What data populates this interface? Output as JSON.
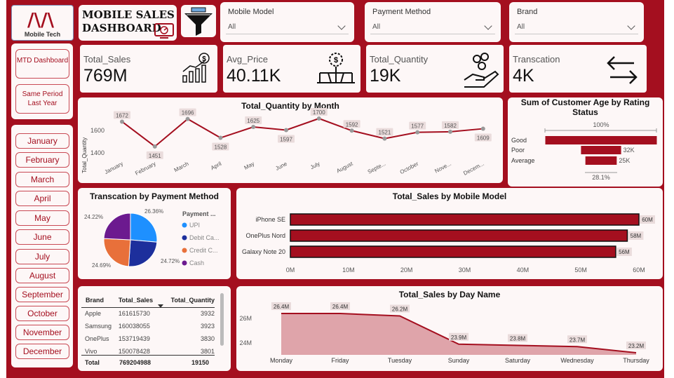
{
  "header": {
    "logo_text": "Mobile Tech",
    "title_line1": "MOBILE SALES",
    "title_line2": "DASHBOARD"
  },
  "slicers": [
    {
      "label": "Mobile Model",
      "value": "All"
    },
    {
      "label": "Payment Method",
      "value": "All"
    },
    {
      "label": "Brand",
      "value": "All"
    }
  ],
  "nav": {
    "mtd": "MTD Dashboard",
    "same_period": "Same Period Last Year"
  },
  "months": [
    "January",
    "February",
    "March",
    "April",
    "May",
    "June",
    "July",
    "August",
    "September",
    "October",
    "November",
    "December"
  ],
  "kpis": [
    {
      "label": "Total_Sales",
      "value": "769M",
      "icon": "bar-growth-icon"
    },
    {
      "label": "Avg_Price",
      "value": "40.11K",
      "icon": "price-network-icon"
    },
    {
      "label": "Total_Quantity",
      "value": "19K",
      "icon": "coins-hand-icon"
    },
    {
      "label": "Transcation",
      "value": "4K",
      "icon": "exchange-arrows-icon"
    }
  ],
  "qty_by_month": {
    "title": "Total_Quantity by Month",
    "ylabel": "Total_Quantity",
    "yticks": [
      "1600",
      "1400"
    ],
    "chart_data": {
      "type": "line",
      "categories": [
        "January",
        "February",
        "March",
        "April",
        "May",
        "June",
        "July",
        "August",
        "September",
        "October",
        "November",
        "December"
      ],
      "tick_labels": [
        "January",
        "February",
        "March",
        "April",
        "May",
        "June",
        "July",
        "August",
        "Septe...",
        "October",
        "Nove...",
        "Decem..."
      ],
      "values": [
        1672,
        1451,
        1696,
        1528,
        1625,
        1597,
        1700,
        1592,
        1521,
        1577,
        1582,
        1609
      ],
      "ylim": [
        1300,
        1800
      ],
      "color": "#a40f1f"
    }
  },
  "age_by_rating": {
    "title": "Sum of Customer Age by Rating Status",
    "top_label": "100%",
    "bottom_label": "28.1%",
    "chart_data": {
      "type": "bar",
      "categories": [
        "Good",
        "Poor",
        "Average"
      ],
      "values": [
        89,
        32,
        25
      ],
      "value_labels": [
        "",
        "32K",
        "25K"
      ]
    }
  },
  "payment_pie": {
    "title": "Transcation by Payment Method",
    "legend_title": "Payment ...",
    "chart_data": {
      "type": "pie",
      "categories": [
        "UPI",
        "Debit Ca...",
        "Credit C...",
        "Cash"
      ],
      "values": [
        26.36,
        24.72,
        24.69,
        24.22
      ],
      "labels": [
        "26.36%",
        "24.72%",
        "24.69%",
        "24.22%"
      ],
      "colors": [
        "#1e90ff",
        "#1d2f9c",
        "#e8703a",
        "#6c1a8f"
      ]
    }
  },
  "sales_by_model": {
    "title": "Total_Sales by Mobile Model",
    "chart_data": {
      "type": "bar",
      "categories": [
        "iPhone SE",
        "OnePlus Nord",
        "Galaxy Note 20"
      ],
      "values": [
        60,
        58,
        56
      ],
      "value_labels": [
        "60M",
        "58M",
        "56M"
      ],
      "xticks": [
        "0M",
        "10M",
        "20M",
        "30M",
        "40M",
        "50M",
        "60M"
      ],
      "xlim": [
        0,
        60
      ]
    }
  },
  "brand_table": {
    "headers": [
      "Brand",
      "Total_Sales",
      "Total_Quantity"
    ],
    "rows": [
      [
        "Apple",
        "161615730",
        "3932"
      ],
      [
        "Samsung",
        "160038055",
        "3923"
      ],
      [
        "OnePlus",
        "153719439",
        "3830"
      ],
      [
        "Vivo",
        "150078428",
        "3801"
      ]
    ],
    "total": [
      "Total",
      "769204988",
      "19150"
    ]
  },
  "sales_by_day": {
    "title": "Total_Sales by Day Name",
    "yticks": [
      "26M",
      "24M"
    ],
    "chart_data": {
      "type": "area",
      "categories": [
        "Monday",
        "Friday",
        "Tuesday",
        "Sunday",
        "Saturday",
        "Wednesday",
        "Thursday"
      ],
      "values": [
        26.4,
        26.4,
        26.2,
        23.9,
        23.8,
        23.7,
        23.2
      ],
      "value_labels": [
        "26.4M",
        "26.4M",
        "26.2M",
        "23.9M",
        "23.8M",
        "23.7M",
        "23.2M"
      ],
      "ylim": [
        22.8,
        27
      ]
    }
  },
  "colors": {
    "accent": "#a40f1f",
    "card": "#fdf7f7"
  }
}
